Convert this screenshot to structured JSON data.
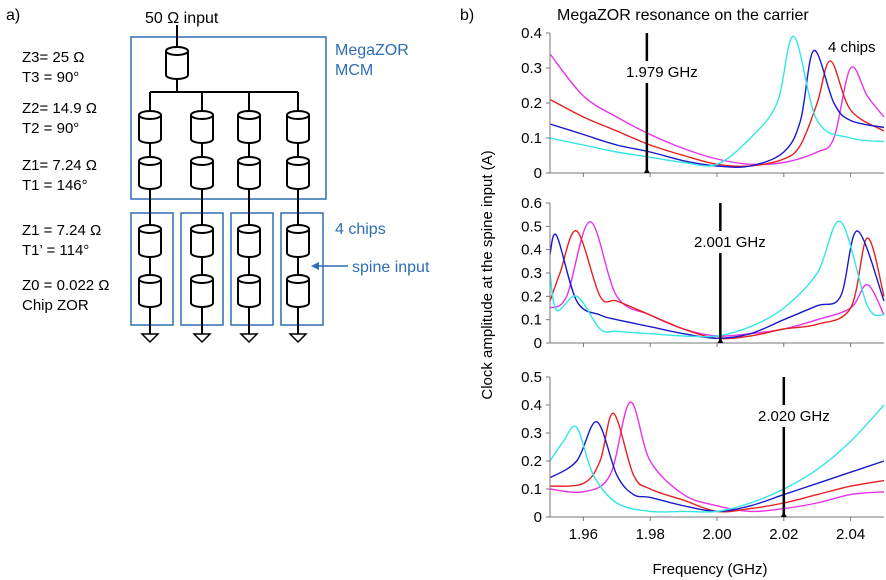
{
  "panel_a": {
    "label": "a)",
    "input_label": "50 Ω input",
    "mcm_label_1": "MegaZOR",
    "mcm_label_2": "MCM",
    "chips_label": "4 chips",
    "spine_label": "spine input",
    "lines": [
      {
        "z": "Z3= 25 Ω",
        "t": "T3 =  90°"
      },
      {
        "z": "Z2= 14.9 Ω",
        "t": "T2 =  90°"
      },
      {
        "z": "Z1= 7.24 Ω",
        "t": "T1 =  146°"
      },
      {
        "z": "Z1 = 7.24 Ω",
        "t": "T1’ =  114°"
      },
      {
        "z": "Z0 = 0.022 Ω",
        "t": "Chip ZOR"
      }
    ]
  },
  "panel_b": {
    "label": "b)",
    "title": "MegaZOR resonance on the carrier",
    "ylabel": "Clock amplitude at the spine input (A)",
    "xlabel": "Frequency (GHz)",
    "chips_note": "4 chips"
  },
  "chart_data": {
    "type": "line",
    "xlim": [
      1.95,
      2.05
    ],
    "x_ticks": [
      "1.96",
      "1.98",
      "2.00",
      "2.02",
      "2.04"
    ],
    "colors": {
      "cyan": "#33e6e6",
      "blue": "#1a1acc",
      "red": "#e62020",
      "magenta": "#e633e6"
    },
    "subplots": [
      {
        "ylim": [
          0,
          0.4
        ],
        "y_ticks": [
          "0",
          "0.1",
          "0.2",
          "0.3",
          "0.4"
        ],
        "marker_x": 1.979,
        "marker_label": "1.979 GHz",
        "series": [
          {
            "name": "magenta",
            "x": [
              1.95,
              1.96,
              1.97,
              1.98,
              1.99,
              2.0,
              2.01,
              2.02,
              2.03,
              2.035,
              2.04,
              2.045,
              2.05
            ],
            "y": [
              0.34,
              0.22,
              0.16,
              0.11,
              0.07,
              0.04,
              0.025,
              0.03,
              0.06,
              0.1,
              0.3,
              0.22,
              0.16
            ]
          },
          {
            "name": "red",
            "x": [
              1.95,
              1.96,
              1.97,
              1.98,
              1.99,
              2.0,
              2.01,
              2.02,
              2.025,
              2.03,
              2.034,
              2.04,
              2.05
            ],
            "y": [
              0.21,
              0.16,
              0.12,
              0.08,
              0.05,
              0.025,
              0.02,
              0.04,
              0.08,
              0.2,
              0.32,
              0.18,
              0.12
            ]
          },
          {
            "name": "blue",
            "x": [
              1.95,
              1.96,
              1.97,
              1.98,
              1.99,
              2.0,
              2.01,
              2.02,
              2.025,
              2.029,
              2.035,
              2.04,
              2.05
            ],
            "y": [
              0.14,
              0.11,
              0.08,
              0.06,
              0.035,
              0.02,
              0.02,
              0.06,
              0.15,
              0.35,
              0.2,
              0.15,
              0.13
            ]
          },
          {
            "name": "cyan",
            "x": [
              1.95,
              1.96,
              1.97,
              1.98,
              1.99,
              2.0,
              2.01,
              2.018,
              2.023,
              2.03,
              2.04,
              2.05
            ],
            "y": [
              0.1,
              0.08,
              0.06,
              0.045,
              0.03,
              0.025,
              0.1,
              0.2,
              0.39,
              0.15,
              0.1,
              0.09
            ]
          }
        ]
      },
      {
        "ylim": [
          0,
          0.6
        ],
        "y_ticks": [
          "0",
          "0.1",
          "0.2",
          "0.3",
          "0.4",
          "0.5",
          "0.6"
        ],
        "marker_x": 2.001,
        "marker_label": "2.001 GHz",
        "series": [
          {
            "name": "magenta",
            "x": [
              1.95,
              1.955,
              1.962,
              1.97,
              1.98,
              1.99,
              2.0,
              2.01,
              2.02,
              2.03,
              2.04,
              2.045,
              2.05
            ],
            "y": [
              0.15,
              0.2,
              0.52,
              0.2,
              0.12,
              0.06,
              0.03,
              0.04,
              0.06,
              0.1,
              0.15,
              0.25,
              0.12
            ]
          },
          {
            "name": "red",
            "x": [
              1.95,
              1.953,
              1.958,
              1.965,
              1.97,
              1.98,
              1.99,
              2.0,
              2.01,
              2.02,
              2.03,
              2.04,
              2.045,
              2.05
            ],
            "y": [
              0.18,
              0.3,
              0.48,
              0.2,
              0.18,
              0.12,
              0.06,
              0.02,
              0.03,
              0.06,
              0.08,
              0.15,
              0.45,
              0.2
            ]
          },
          {
            "name": "blue",
            "x": [
              1.95,
              1.952,
              1.958,
              1.965,
              1.97,
              1.98,
              1.99,
              2.0,
              2.01,
              2.02,
              2.03,
              2.037,
              2.042,
              2.05
            ],
            "y": [
              0.38,
              0.46,
              0.18,
              0.12,
              0.1,
              0.07,
              0.04,
              0.02,
              0.04,
              0.1,
              0.16,
              0.2,
              0.48,
              0.18
            ]
          },
          {
            "name": "cyan",
            "x": [
              1.95,
              1.952,
              1.958,
              1.965,
              1.97,
              1.98,
              1.99,
              2.0,
              2.01,
              2.02,
              2.03,
              2.037,
              2.045,
              2.05
            ],
            "y": [
              0.3,
              0.14,
              0.2,
              0.06,
              0.05,
              0.04,
              0.03,
              0.03,
              0.07,
              0.15,
              0.3,
              0.52,
              0.16,
              0.12
            ]
          }
        ]
      },
      {
        "ylim": [
          0,
          0.5
        ],
        "y_ticks": [
          "0",
          "0.1",
          "0.2",
          "0.3",
          "0.4",
          "0.5"
        ],
        "marker_x": 2.02,
        "marker_label": "2.020 GHz",
        "series": [
          {
            "name": "magenta",
            "x": [
              1.95,
              1.96,
              1.968,
              1.974,
              1.98,
              1.99,
              2.0,
              2.01,
              2.02,
              2.03,
              2.04,
              2.05
            ],
            "y": [
              0.1,
              0.09,
              0.15,
              0.41,
              0.2,
              0.08,
              0.04,
              0.02,
              0.03,
              0.05,
              0.08,
              0.09
            ]
          },
          {
            "name": "red",
            "x": [
              1.95,
              1.96,
              1.965,
              1.969,
              1.975,
              1.98,
              1.99,
              2.0,
              2.01,
              2.02,
              2.03,
              2.04,
              2.05
            ],
            "y": [
              0.11,
              0.12,
              0.2,
              0.37,
              0.15,
              0.1,
              0.06,
              0.02,
              0.03,
              0.05,
              0.08,
              0.11,
              0.13
            ]
          },
          {
            "name": "blue",
            "x": [
              1.95,
              1.958,
              1.964,
              1.97,
              1.975,
              1.98,
              1.99,
              2.0,
              2.01,
              2.02,
              2.03,
              2.04,
              2.05
            ],
            "y": [
              0.14,
              0.2,
              0.34,
              0.15,
              0.08,
              0.07,
              0.04,
              0.02,
              0.04,
              0.08,
              0.12,
              0.16,
              0.2
            ]
          },
          {
            "name": "cyan",
            "x": [
              1.95,
              1.954,
              1.958,
              1.963,
              1.97,
              1.98,
              1.99,
              2.0,
              2.01,
              2.02,
              2.03,
              2.04,
              2.05
            ],
            "y": [
              0.2,
              0.27,
              0.32,
              0.15,
              0.05,
              0.02,
              0.02,
              0.02,
              0.05,
              0.1,
              0.17,
              0.27,
              0.4
            ]
          }
        ]
      }
    ]
  }
}
